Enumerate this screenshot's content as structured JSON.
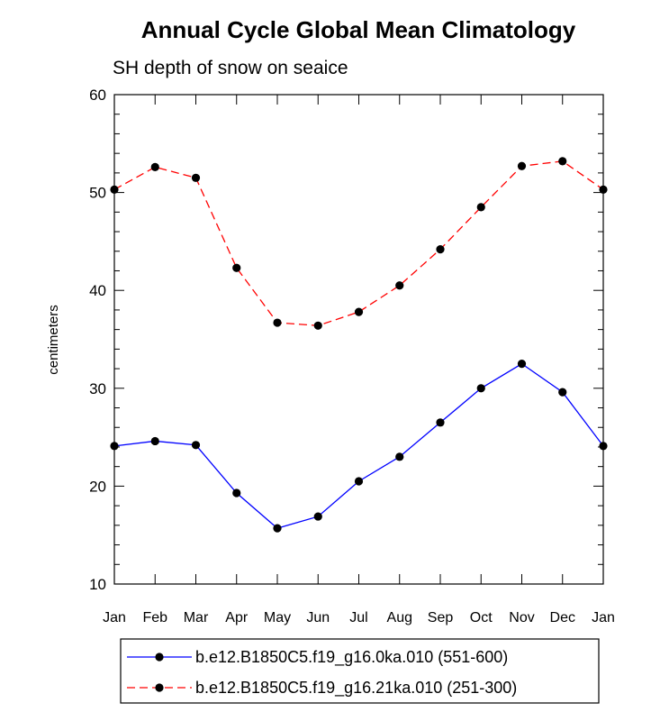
{
  "chart_data": {
    "type": "line",
    "title": "Annual Cycle Global Mean Climatology",
    "subtitle": "SH depth of snow on seaice",
    "xlabel": "",
    "ylabel": "centimeters",
    "ylim": [
      10,
      60
    ],
    "yticks": [
      10,
      20,
      30,
      40,
      50,
      60
    ],
    "categories": [
      "Jan",
      "Feb",
      "Mar",
      "Apr",
      "May",
      "Jun",
      "Jul",
      "Aug",
      "Sep",
      "Oct",
      "Nov",
      "Dec",
      "Jan"
    ],
    "grid": false,
    "legend_position": "bottom",
    "series": [
      {
        "name": "b.e12.B1850C5.f19_g16.0ka.010 (551-600)",
        "color": "#0000ff",
        "line_style": "solid",
        "marker": "filled-circle",
        "values": [
          24.1,
          24.6,
          24.2,
          19.3,
          15.7,
          16.9,
          20.5,
          23.0,
          26.5,
          30.0,
          32.5,
          29.6,
          24.1
        ]
      },
      {
        "name": "b.e12.B1850C5.f19_g16.21ka.010 (251-300)",
        "color": "#ff0000",
        "line_style": "dashed",
        "marker": "filled-circle",
        "values": [
          50.3,
          52.6,
          51.5,
          42.3,
          36.7,
          36.4,
          37.8,
          40.5,
          44.2,
          48.5,
          52.7,
          53.2,
          50.3
        ]
      }
    ]
  }
}
